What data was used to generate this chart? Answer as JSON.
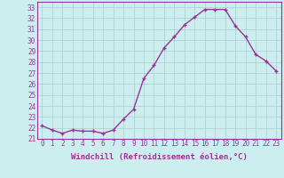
{
  "hours": [
    0,
    1,
    2,
    3,
    4,
    5,
    6,
    7,
    8,
    9,
    10,
    11,
    12,
    13,
    14,
    15,
    16,
    17,
    18,
    19,
    20,
    21,
    22,
    23
  ],
  "values": [
    22.2,
    21.8,
    21.5,
    21.8,
    21.7,
    21.7,
    21.5,
    21.8,
    22.8,
    23.7,
    26.5,
    27.7,
    29.3,
    30.3,
    31.4,
    32.1,
    32.8,
    32.8,
    32.8,
    31.3,
    30.3,
    28.7,
    28.1,
    27.2
  ],
  "line_color": "#993399",
  "marker": "+",
  "marker_size": 3,
  "bg_color": "#cceeee",
  "grid_color": "#aacccc",
  "xlabel": "Windchill (Refroidissement éolien,°C)",
  "ylim_min": 21,
  "ylim_max": 33.5,
  "yticks": [
    21,
    22,
    23,
    24,
    25,
    26,
    27,
    28,
    29,
    30,
    31,
    32,
    33
  ],
  "line_color_hex": "#993399",
  "tick_color": "#993399",
  "xlabel_color": "#993399",
  "spine_color": "#993399",
  "line_width": 1.0,
  "tick_fontsize": 5.5,
  "xlabel_fontsize": 6.5
}
